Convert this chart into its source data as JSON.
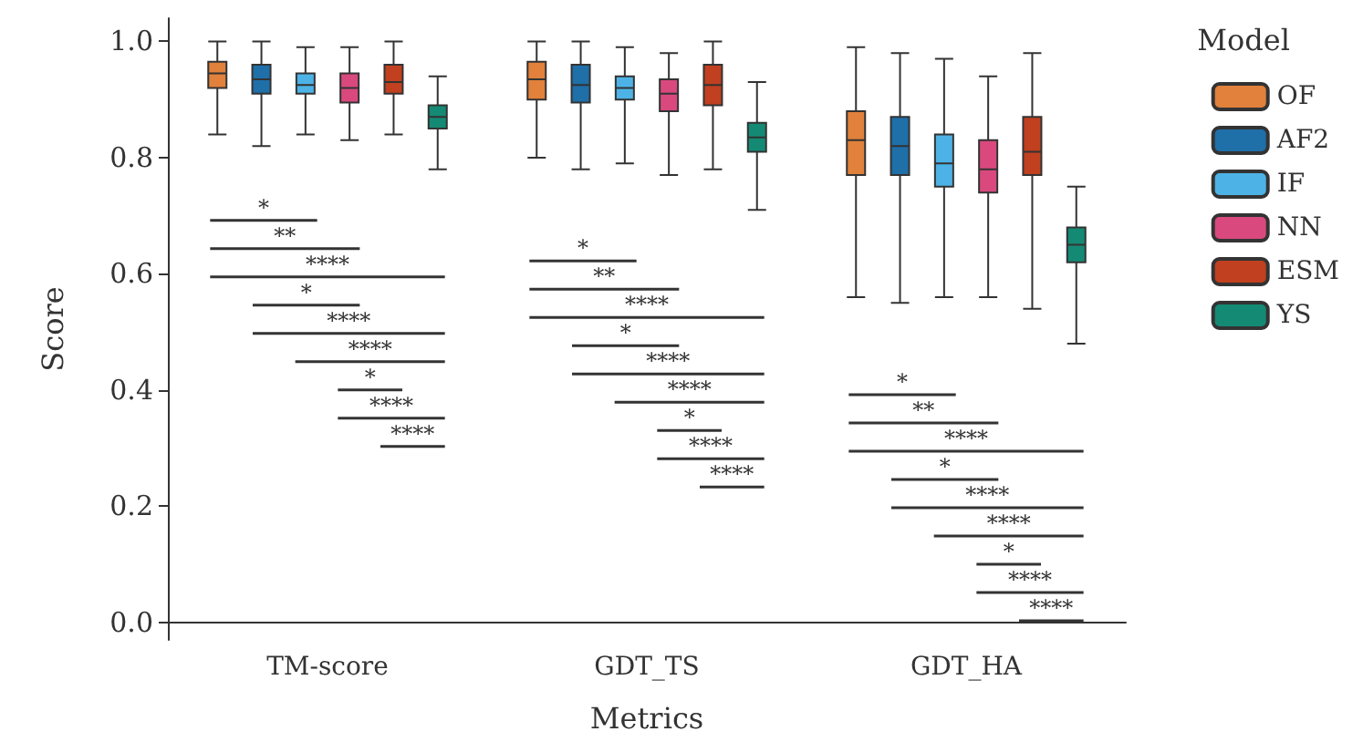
{
  "chart_data": {
    "type": "box",
    "xlabel": "Metrics",
    "ylabel": "Score",
    "legend_title": "Model",
    "legend": "right",
    "grid": false,
    "categories": [
      "TM-score",
      "GDT_TS",
      "GDT_HA"
    ],
    "ylim": [
      -0.03,
      1.04
    ],
    "yticks": [
      {
        "value": 0,
        "label": "0.0"
      },
      {
        "value": 0.2,
        "label": "0.2"
      },
      {
        "value": 0.4,
        "label": "0.4"
      },
      {
        "value": 0.6,
        "label": "0.6"
      },
      {
        "value": 0.8,
        "label": "0.8"
      },
      {
        "value": 1,
        "label": "1.0"
      }
    ],
    "series": [
      {
        "name": "OF",
        "color": "#e1813c",
        "boxes": [
          {
            "low": 0.84,
            "q1": 0.92,
            "median": 0.945,
            "q3": 0.965,
            "high": 1.0
          },
          {
            "low": 0.8,
            "q1": 0.9,
            "median": 0.935,
            "q3": 0.965,
            "high": 1.0
          },
          {
            "low": 0.56,
            "q1": 0.77,
            "median": 0.83,
            "q3": 0.88,
            "high": 0.99
          }
        ]
      },
      {
        "name": "AF2",
        "color": "#1f6fa8",
        "boxes": [
          {
            "low": 0.82,
            "q1": 0.91,
            "median": 0.935,
            "q3": 0.96,
            "high": 1.0
          },
          {
            "low": 0.78,
            "q1": 0.895,
            "median": 0.925,
            "q3": 0.96,
            "high": 1.0
          },
          {
            "low": 0.55,
            "q1": 0.77,
            "median": 0.82,
            "q3": 0.87,
            "high": 0.98
          }
        ]
      },
      {
        "name": "IF",
        "color": "#4db3e6",
        "boxes": [
          {
            "low": 0.84,
            "q1": 0.91,
            "median": 0.925,
            "q3": 0.945,
            "high": 0.99
          },
          {
            "low": 0.79,
            "q1": 0.9,
            "median": 0.92,
            "q3": 0.94,
            "high": 0.99
          },
          {
            "low": 0.56,
            "q1": 0.75,
            "median": 0.79,
            "q3": 0.84,
            "high": 0.97
          }
        ]
      },
      {
        "name": "NN",
        "color": "#d9497e",
        "boxes": [
          {
            "low": 0.83,
            "q1": 0.895,
            "median": 0.92,
            "q3": 0.945,
            "high": 0.99
          },
          {
            "low": 0.77,
            "q1": 0.88,
            "median": 0.91,
            "q3": 0.935,
            "high": 0.98
          },
          {
            "low": 0.56,
            "q1": 0.74,
            "median": 0.78,
            "q3": 0.83,
            "high": 0.94
          }
        ]
      },
      {
        "name": "ESM",
        "color": "#c0401f",
        "boxes": [
          {
            "low": 0.84,
            "q1": 0.91,
            "median": 0.93,
            "q3": 0.96,
            "high": 1.0
          },
          {
            "low": 0.78,
            "q1": 0.89,
            "median": 0.925,
            "q3": 0.96,
            "high": 1.0
          },
          {
            "low": 0.54,
            "q1": 0.77,
            "median": 0.81,
            "q3": 0.87,
            "high": 0.98
          }
        ]
      },
      {
        "name": "YS",
        "color": "#148a74",
        "boxes": [
          {
            "low": 0.78,
            "q1": 0.85,
            "median": 0.87,
            "q3": 0.89,
            "high": 0.94
          },
          {
            "low": 0.71,
            "q1": 0.81,
            "median": 0.835,
            "q3": 0.86,
            "high": 0.93
          },
          {
            "low": 0.48,
            "q1": 0.62,
            "median": 0.65,
            "q3": 0.68,
            "high": 0.75
          }
        ]
      }
    ],
    "annotations": [
      "*",
      "**",
      "****",
      "*",
      "****",
      "****",
      "*",
      "****",
      "****",
      "*",
      "**",
      "****",
      "*",
      "****",
      "****",
      "*",
      "****",
      "****",
      "*",
      "**",
      "****",
      "*",
      "****",
      "****",
      "*",
      "****",
      "****"
    ]
  }
}
